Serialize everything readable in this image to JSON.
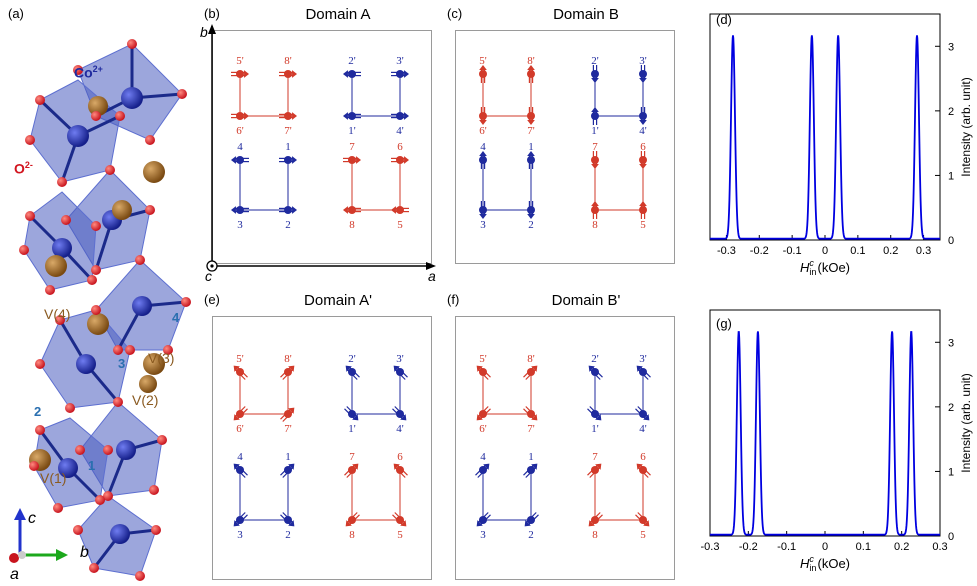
{
  "panels": {
    "a": {
      "label": "(a)",
      "co": "Co",
      "co_charge": "2+",
      "o": "O",
      "o_charge": "2-",
      "sites": [
        "V(4)",
        "V(3)",
        "V(2)",
        "V(1)"
      ],
      "chain_numbers": [
        "4",
        "3",
        "2",
        "1"
      ],
      "axes": {
        "c": "c",
        "b": "b",
        "a": "a"
      }
    },
    "b": {
      "label": "(b)",
      "title": "Domain A",
      "axis_b": "b",
      "axis_a": "a",
      "axis_c": "c"
    },
    "c": {
      "label": "(c)",
      "title": "Domain B"
    },
    "d": {
      "label": "(d)"
    },
    "e": {
      "label": "(e)",
      "title": "Domain A'"
    },
    "f": {
      "label": "(f)",
      "title": "Domain B'"
    },
    "g": {
      "label": "(g)"
    }
  },
  "site_labels": {
    "red_top": [
      "5'",
      "8'",
      "6'",
      "7'"
    ],
    "blue_top": [
      "2'",
      "3'",
      "1'",
      "4'"
    ],
    "blue_bottom": [
      "4",
      "1",
      "3",
      "2"
    ],
    "red_bottom": [
      "7",
      "6",
      "8",
      "5"
    ]
  },
  "colors": {
    "red": "#d23a2a",
    "blue": "#1f2a9e",
    "line": "#0000e0",
    "octa": "#4a5cc0"
  },
  "chart_data": [
    {
      "type": "line",
      "panel": "(d)",
      "xlabel": "H_in^c (kOe)",
      "ylabel": "Intensity (arb. unit)",
      "xlim": [
        -0.35,
        0.35
      ],
      "ylim": [
        0,
        3.5
      ],
      "xticks": [
        -0.3,
        -0.2,
        -0.1,
        0,
        0.1,
        0.2,
        0.3
      ],
      "yticks": [
        0,
        1,
        2,
        3
      ],
      "peaks": [
        -0.28,
        -0.04,
        0.04,
        0.28
      ],
      "peak_height": 3.15,
      "peak_width": 0.006
    },
    {
      "type": "line",
      "panel": "(g)",
      "xlabel": "H_in^c (kOe)",
      "ylabel": "Intensity (arb. unit)",
      "xlim": [
        -0.3,
        0.3
      ],
      "ylim": [
        0,
        3.5
      ],
      "xticks": [
        -0.3,
        -0.2,
        -0.1,
        0,
        0.1,
        0.2,
        0.3
      ],
      "yticks": [
        0,
        1,
        2,
        3
      ],
      "peaks": [
        -0.225,
        -0.175,
        0.175,
        0.225
      ],
      "peak_height": 3.15,
      "peak_width": 0.005
    }
  ]
}
